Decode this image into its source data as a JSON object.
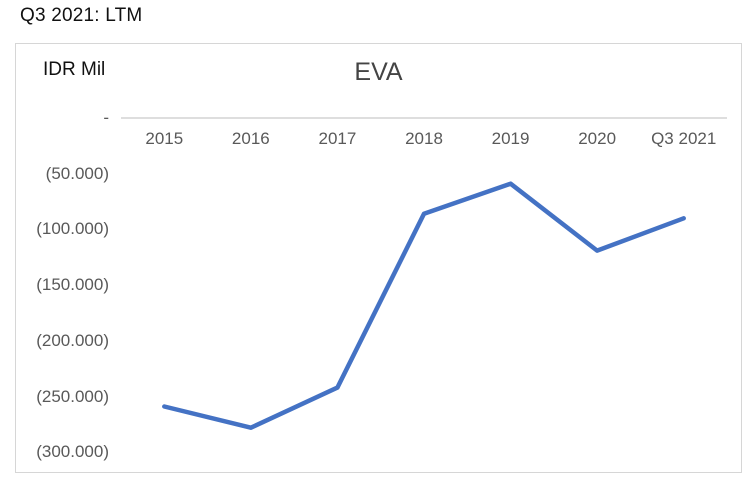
{
  "page": {
    "header_label": "Q3 2021: LTM",
    "background_color": "#ffffff"
  },
  "chart": {
    "frame_border_color": "#d6d6d6",
    "axis_line_color": "#d9d9d9",
    "tick_label_color": "#595959",
    "title_color": "#444444",
    "unit_label": "IDR Mil"
  },
  "chart_data": {
    "type": "line",
    "title": "EVA",
    "xlabel": "",
    "ylabel": "IDR Mil",
    "categories": [
      "2015",
      "2016",
      "2017",
      "2018",
      "2019",
      "2020",
      "Q3 2021"
    ],
    "series": [
      {
        "name": "EVA",
        "color": "#4472C4",
        "values": [
          -259000,
          -278000,
          -242000,
          -86000,
          -59000,
          -119000,
          -90000
        ]
      }
    ],
    "ytick_labels": [
      "-",
      "(50.000)",
      "(100.000)",
      "(150.000)",
      "(200.000)",
      "(250.000)",
      "(300.000)"
    ],
    "ytick_values": [
      0,
      -50000,
      -100000,
      -150000,
      -200000,
      -250000,
      -300000
    ],
    "ylim": [
      -300000,
      0
    ],
    "grid": false,
    "legend": false,
    "legend_position": "none"
  }
}
